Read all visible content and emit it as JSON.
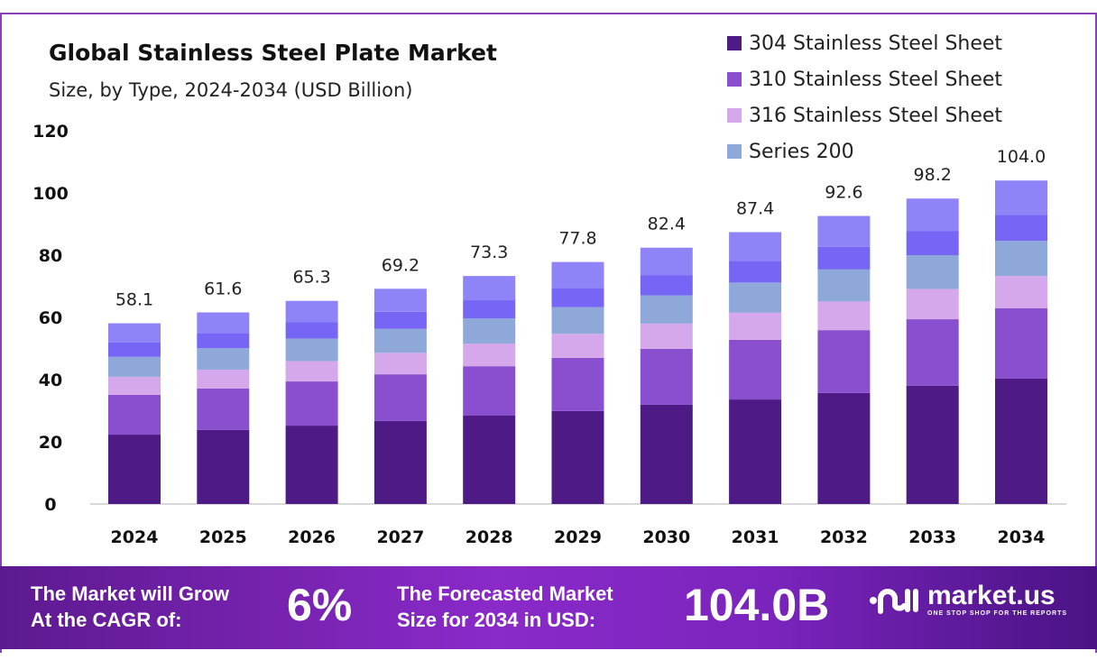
{
  "chart_data": {
    "type": "bar",
    "stacked": true,
    "title": "Global Stainless Steel Plate Market",
    "subtitle": "Size, by Type, 2024-2034 (USD Billion)",
    "xlabel": "",
    "ylabel": "",
    "ylim": [
      0,
      120
    ],
    "yticks": [
      "0",
      "20",
      "40",
      "60",
      "80",
      "100",
      "120"
    ],
    "grid": false,
    "legend_position": "top-right",
    "categories": [
      "2024",
      "2025",
      "2026",
      "2027",
      "2028",
      "2029",
      "2030",
      "2031",
      "2032",
      "2033",
      "2034"
    ],
    "totals": [
      "58.1",
      "61.6",
      "65.3",
      "69.2",
      "73.3",
      "77.8",
      "82.4",
      "87.4",
      "92.6",
      "98.2",
      "104.0"
    ],
    "series": [
      {
        "name": "304 Stainless Steel Sheet",
        "color": "#4e1a86",
        "values": [
          22.3,
          23.8,
          25.2,
          26.7,
          28.4,
          29.9,
          31.9,
          33.6,
          35.7,
          38.0,
          40.3
        ]
      },
      {
        "name": "310 Stainless Steel Sheet",
        "color": "#8a4fcf",
        "values": [
          12.8,
          13.3,
          14.2,
          15.0,
          15.9,
          17.1,
          18.0,
          19.2,
          20.2,
          21.4,
          22.6
        ]
      },
      {
        "name": "316 Stainless Steel Sheet",
        "color": "#d4a8ea",
        "values": [
          5.8,
          6.1,
          6.5,
          6.9,
          7.3,
          7.7,
          8.1,
          8.7,
          9.2,
          9.7,
          10.4
        ]
      },
      {
        "name": "Series 200",
        "color": "#8fa8da",
        "values": [
          6.4,
          6.9,
          7.3,
          7.7,
          8.1,
          8.6,
          9.1,
          9.7,
          10.3,
          10.9,
          11.3
        ]
      },
      {
        "color": "#7766f5",
        "values": [
          4.6,
          4.9,
          5.2,
          5.5,
          5.8,
          6.2,
          6.5,
          6.9,
          7.3,
          7.8,
          8.4
        ]
      },
      {
        "color": "#8f83f8",
        "values": [
          6.2,
          6.6,
          6.9,
          7.4,
          7.8,
          8.3,
          8.8,
          9.3,
          9.9,
          10.4,
          11.0
        ]
      }
    ]
  },
  "footer": {
    "cagr_label_1": "The Market will Grow",
    "cagr_label_2": "At the CAGR of:",
    "cagr_value": "6%",
    "forecast_label_1": "The Forecasted Market",
    "forecast_label_2": "Size for 2034 in USD:",
    "forecast_value": "104.0B",
    "brand": "market.us",
    "brand_tagline": "ONE STOP SHOP FOR THE REPORTS"
  }
}
